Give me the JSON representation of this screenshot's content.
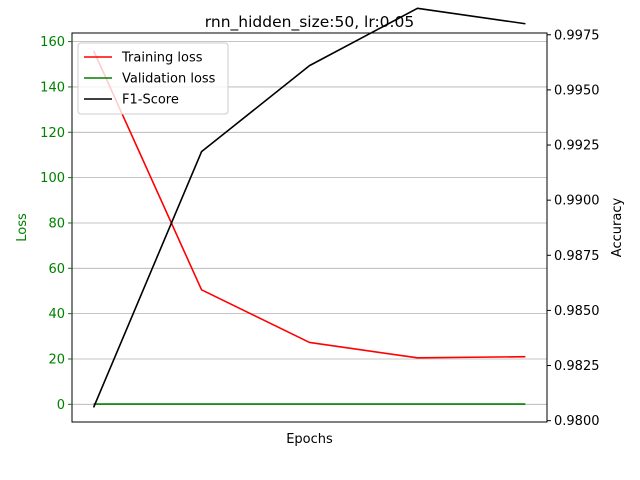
{
  "chart_data": {
    "type": "line",
    "title": "rnn_hidden_size:50, lr:0.05",
    "xlabel": "Epochs",
    "ylabel_left": "Loss",
    "ylabel_right": "Accuracy",
    "left_axis_color": "#008000",
    "right_axis_color": "#000000",
    "left_ylim": [
      -7.8,
      163.8
    ],
    "right_ylim": [
      0.97994,
      0.99758
    ],
    "left_ticks": [
      0,
      20,
      40,
      60,
      80,
      100,
      120,
      140,
      160
    ],
    "right_ticks": [
      0.98,
      0.9825,
      0.985,
      0.9875,
      0.99,
      0.9925,
      0.995,
      0.9975
    ],
    "right_tick_labels": [
      "0.9800",
      "0.9825",
      "0.9850",
      "0.9875",
      "0.9900",
      "0.9925",
      "0.9950",
      "0.9975"
    ],
    "x": [
      1,
      2,
      3,
      4,
      5
    ],
    "xlim": [
      0.8,
      5.2
    ],
    "grid": true,
    "legend_position": "top-left",
    "series": [
      {
        "name": "Training loss",
        "axis": "left",
        "color": "#ff0000",
        "values": [
          156,
          50.5,
          27.3,
          20.5,
          21.0
        ]
      },
      {
        "name": "Validation loss",
        "axis": "left",
        "color": "#008000",
        "values": [
          0.1,
          0.1,
          0.1,
          0.1,
          0.1
        ]
      },
      {
        "name": "F1-Score",
        "axis": "right",
        "color": "#000000",
        "values": [
          0.9806,
          0.9922,
          0.9961,
          0.9987,
          0.998
        ]
      }
    ]
  }
}
